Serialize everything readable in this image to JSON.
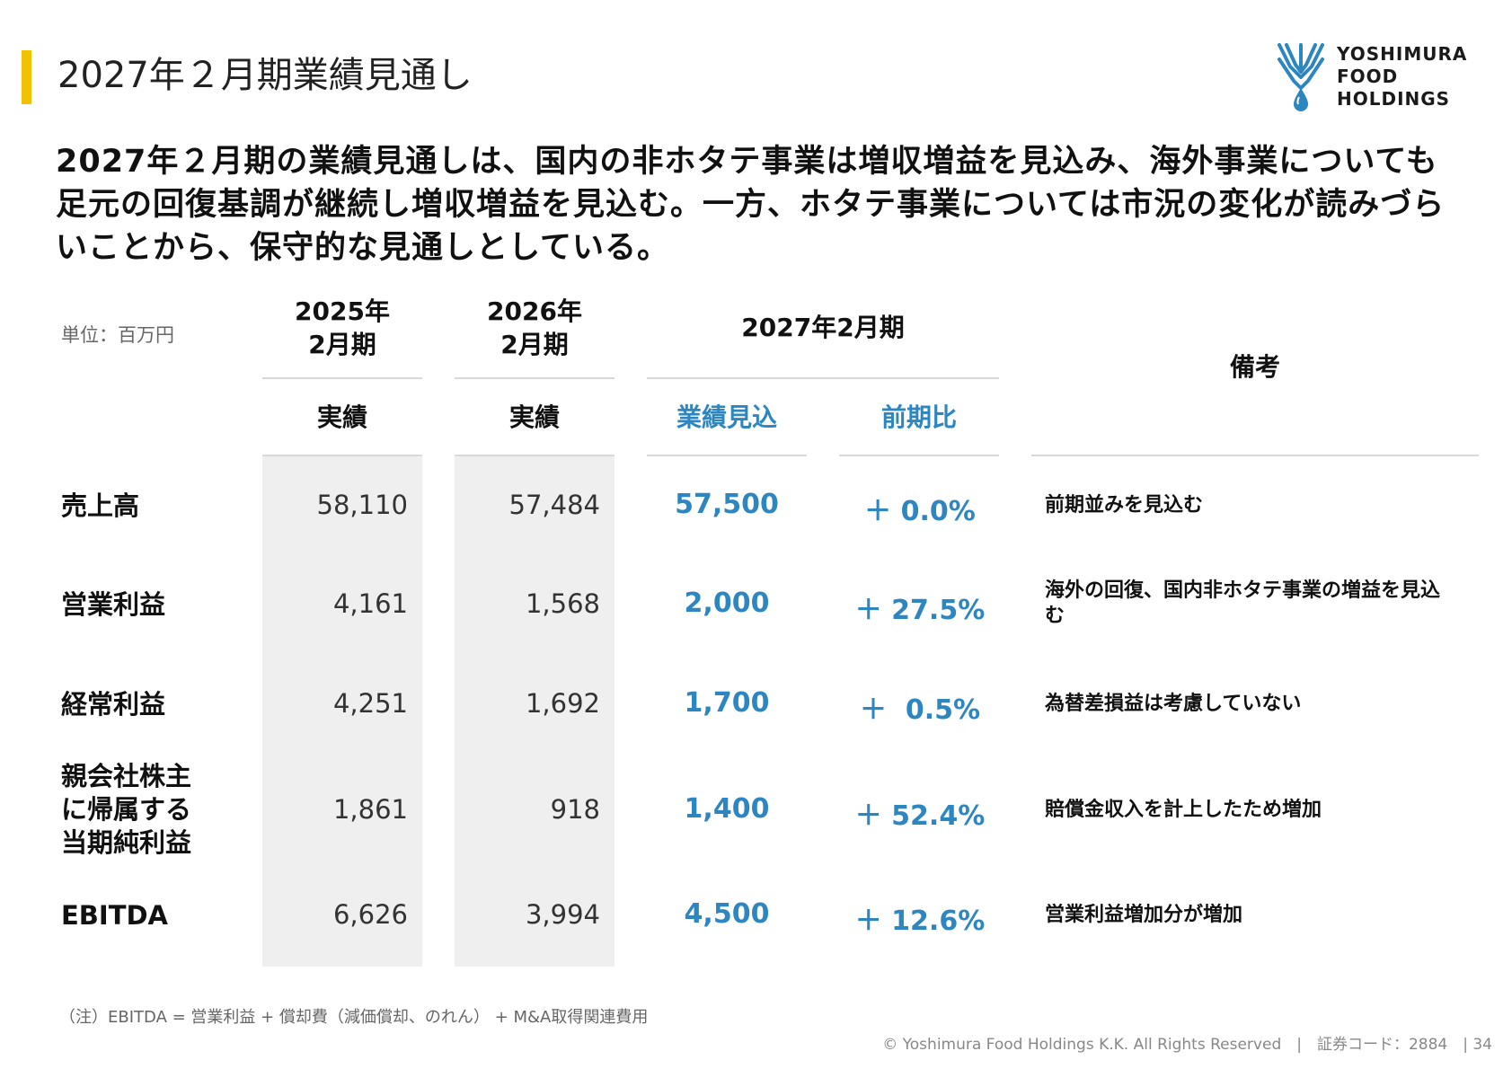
{
  "title": "2027年２月期業績見通し",
  "logo": {
    "lines": [
      "YOSHIMURA",
      "FOOD",
      "HOLDINGS"
    ],
    "icon": "wheat-drop-logo-icon",
    "color": "#2e86c1"
  },
  "lead": "2027年２月期の業績見通しは、国内の非ホタテ事業は増収増益を見込み、海外事業についても足元の回復基調が継続し増収増益を見込む。一方、ホタテ事業については市況の変化が読みづらいことから、保守的な見通しとしている。",
  "table": {
    "unit_label": "単位：百万円",
    "col1_header": "2025年\n2月期",
    "col2_header": "2026年\n2月期",
    "col3_group_header": "2027年2月期",
    "remarks_header": "備考",
    "sub_actual_1": "実績",
    "sub_actual_2": "実績",
    "sub_forecast": "業績見込",
    "sub_yoy": "前期比",
    "rows": [
      {
        "label": "売上高",
        "fy2025": "58,110",
        "fy2026": "57,484",
        "forecast": "57,500",
        "yoy": "＋ 0.0%",
        "remark": "前期並みを見込む"
      },
      {
        "label": "営業利益",
        "fy2025": "4,161",
        "fy2026": "1,568",
        "forecast": "2,000",
        "yoy": "＋ 27.5%",
        "remark": "海外の回復、国内非ホタテ事業の増益を見込む"
      },
      {
        "label": "経常利益",
        "fy2025": "4,251",
        "fy2026": "1,692",
        "forecast": "1,700",
        "yoy": "＋  0.5%",
        "remark": "為替差損益は考慮していない"
      },
      {
        "label": "親会社株主\nに帰属する\n当期純利益",
        "fy2025": "1,861",
        "fy2026": "918",
        "forecast": "1,400",
        "yoy": "＋ 52.4%",
        "remark": "賠償金収入を計上したため増加"
      },
      {
        "label": "EBITDA",
        "fy2025": "6,626",
        "fy2026": "3,994",
        "forecast": "4,500",
        "yoy": "＋ 12.6%",
        "remark": "営業利益増加分が増加"
      }
    ]
  },
  "note": "（注）EBITDA = 営業利益 + 償却費（減価償却、のれん） + M&A取得関連費用",
  "footer": "© Yoshimura Food Holdings K.K. All Rights Reserved　|　証券コード：2884　| 34",
  "colors": {
    "accent_bar": "#f2c200",
    "highlight_blue": "#2e86c1",
    "shade": "#efefef"
  }
}
